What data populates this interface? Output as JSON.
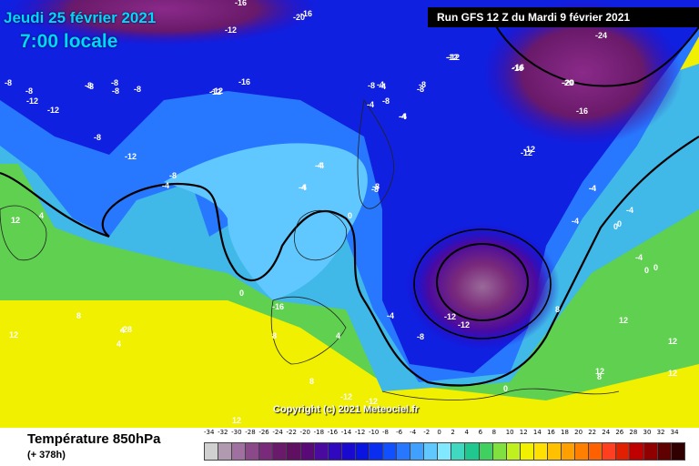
{
  "header": {
    "date": "Jeudi 25 février 2021",
    "time": "7:00 locale",
    "run": "Run GFS 12 Z du Mardi 9 février 2021"
  },
  "copyright": "Copyright (c) 2021 Meteociel.fr",
  "footer": {
    "variable": "Température 850hPa",
    "lead": "(+ 378h)"
  },
  "legend": {
    "labels": [
      "-34",
      "-32",
      "-30",
      "-28",
      "-26",
      "-24",
      "-22",
      "-20",
      "-18",
      "-16",
      "-14",
      "-12",
      "-10",
      "-8",
      "-6",
      "-4",
      "-2",
      "0",
      "2",
      "4",
      "6",
      "8",
      "10",
      "12",
      "14",
      "16",
      "18",
      "20",
      "22",
      "24",
      "26",
      "28",
      "30",
      "32",
      "34"
    ],
    "colors": [
      "#d0d0d0",
      "#b09ab0",
      "#a070a0",
      "#8a4a8a",
      "#7a2a7a",
      "#6a1a6a",
      "#601060",
      "#5a0a78",
      "#4a0aa0",
      "#3008c0",
      "#1a0ad0",
      "#0a14e0",
      "#0a2ef0",
      "#1050ff",
      "#2878ff",
      "#40a0ff",
      "#60c8ff",
      "#80e8ff",
      "#40d8c0",
      "#20c890",
      "#40d060",
      "#80e040",
      "#c0f020",
      "#f0f000",
      "#ffe000",
      "#ffc000",
      "#ffa000",
      "#ff8000",
      "#ff6000",
      "#ff4020",
      "#e02000",
      "#c00000",
      "#900000",
      "#600000",
      "#300000"
    ]
  },
  "map_labels": [
    {
      "t": "-16"
    },
    {
      "t": "-20"
    },
    {
      "t": "-16"
    },
    {
      "t": "-24"
    },
    {
      "t": "-12"
    },
    {
      "t": "-16"
    },
    {
      "t": "-20"
    },
    {
      "t": "-16"
    },
    {
      "t": "-8"
    },
    {
      "t": "-8"
    },
    {
      "t": "-8"
    },
    {
      "t": "-8"
    },
    {
      "t": "-12"
    },
    {
      "t": "-12"
    },
    {
      "t": "-16"
    },
    {
      "t": "-12"
    },
    {
      "t": "-8"
    },
    {
      "t": "-4"
    },
    {
      "t": "-8"
    },
    {
      "t": "-4"
    },
    {
      "t": "-4"
    },
    {
      "t": "-8"
    },
    {
      "t": "-12"
    },
    {
      "t": "-8"
    },
    {
      "t": "-12"
    },
    {
      "t": "-8"
    },
    {
      "t": "-4"
    },
    {
      "t": "-4"
    },
    {
      "t": "-8"
    },
    {
      "t": "-12"
    },
    {
      "t": "-4"
    },
    {
      "t": "0"
    },
    {
      "t": "0"
    },
    {
      "t": "-4"
    },
    {
      "t": "0"
    },
    {
      "t": "-28"
    },
    {
      "t": "-16"
    },
    {
      "t": "-12"
    },
    {
      "t": "-12"
    },
    {
      "t": "-12"
    },
    {
      "t": "-8"
    },
    {
      "t": "-4"
    },
    {
      "t": "0"
    },
    {
      "t": "-4"
    },
    {
      "t": "0"
    },
    {
      "t": "4"
    },
    {
      "t": "8"
    },
    {
      "t": "8"
    },
    {
      "t": "4"
    },
    {
      "t": "8"
    },
    {
      "t": "12"
    },
    {
      "t": "12"
    },
    {
      "t": "12"
    },
    {
      "t": "12"
    },
    {
      "t": "-12"
    },
    {
      "t": "12"
    },
    {
      "t": "8"
    },
    {
      "t": "12"
    },
    {
      "t": "8"
    },
    {
      "t": "4"
    },
    {
      "t": "-12"
    },
    {
      "t": "0"
    },
    {
      "t": "-20"
    },
    {
      "t": "-16"
    },
    {
      "t": "-12"
    },
    {
      "t": "-8"
    },
    {
      "t": "-12"
    },
    {
      "t": "-8"
    },
    {
      "t": "-4"
    },
    {
      "t": "-4"
    },
    {
      "t": "-4"
    },
    {
      "t": "-8"
    },
    {
      "t": "-4"
    },
    {
      "t": "-8"
    },
    {
      "t": "-4"
    },
    {
      "t": "-4"
    },
    {
      "t": "0"
    },
    {
      "t": "-4"
    },
    {
      "t": "-8"
    },
    {
      "t": "4"
    },
    {
      "t": "12"
    },
    {
      "t": "12"
    }
  ]
}
